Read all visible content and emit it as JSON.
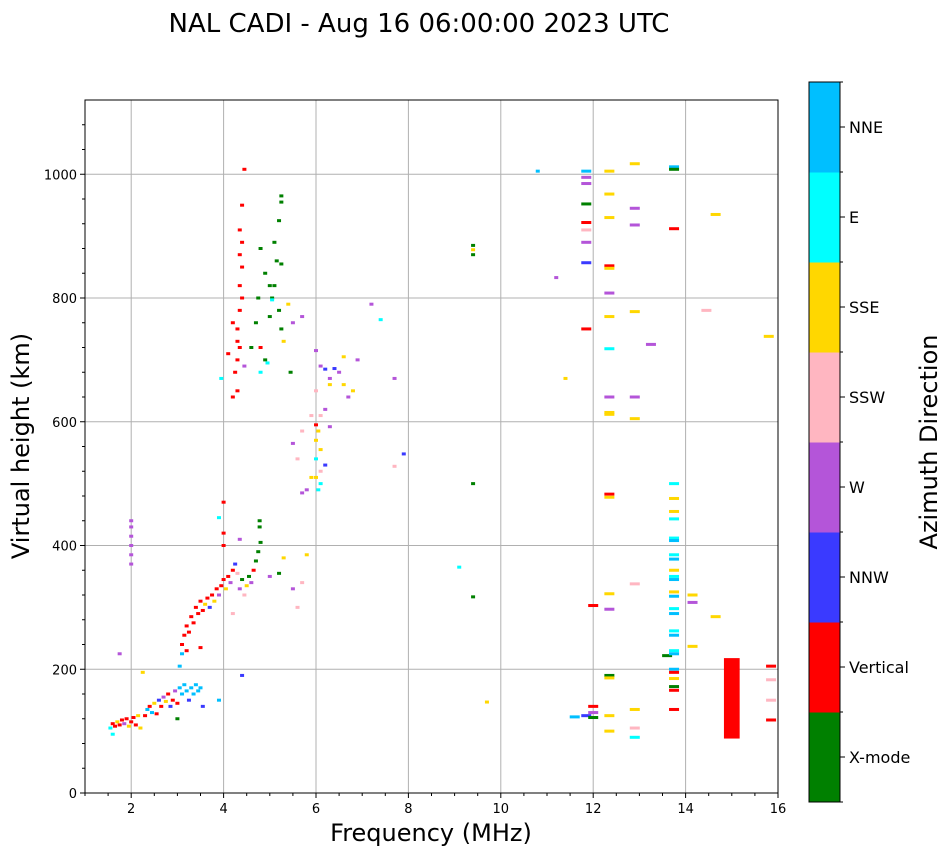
{
  "chart_data": {
    "type": "scatter",
    "title": "NAL CADI - Aug 16 06:00:00 2023 UTC",
    "xlabel": "Frequency (MHz)",
    "ylabel": "Virtual height (km)",
    "xlim": [
      1,
      16
    ],
    "ylim": [
      0,
      1120
    ],
    "xticks": [
      2,
      4,
      6,
      8,
      10,
      12,
      14,
      16
    ],
    "yticks": [
      0,
      200,
      400,
      600,
      800,
      1000
    ],
    "grid": true,
    "colorbar": {
      "label": "Azimuth Direction",
      "categories": [
        {
          "name": "X-mode",
          "color": "#008000"
        },
        {
          "name": "Vertical",
          "color": "#ff0000"
        },
        {
          "name": "NNW",
          "color": "#3a3aff"
        },
        {
          "name": "W",
          "color": "#b455d9"
        },
        {
          "name": "SSW",
          "color": "#ffb6c1"
        },
        {
          "name": "SSE",
          "color": "#ffd700"
        },
        {
          "name": "E",
          "color": "#00ffff"
        },
        {
          "name": "NNE",
          "color": "#00bfff"
        }
      ]
    },
    "points": [
      [
        1.55,
        105,
        "E"
      ],
      [
        1.6,
        112,
        "Vertical"
      ],
      [
        1.65,
        108,
        "Vertical"
      ],
      [
        1.7,
        115,
        "SSE"
      ],
      [
        1.75,
        110,
        "Vertical"
      ],
      [
        1.8,
        118,
        "Vertical"
      ],
      [
        1.85,
        112,
        "W"
      ],
      [
        1.9,
        120,
        "Vertical"
      ],
      [
        1.95,
        108,
        "SSE"
      ],
      [
        2.0,
        115,
        "Vertical"
      ],
      [
        2.05,
        122,
        "Vertical"
      ],
      [
        2.1,
        110,
        "Vertical"
      ],
      [
        2.15,
        125,
        "SSE"
      ],
      [
        2.2,
        105,
        "SSE"
      ],
      [
        1.6,
        95,
        "E"
      ],
      [
        1.75,
        225,
        "W"
      ],
      [
        2.25,
        195,
        "SSE"
      ],
      [
        2.0,
        370,
        "W"
      ],
      [
        2.0,
        385,
        "W"
      ],
      [
        2.0,
        400,
        "W"
      ],
      [
        2.0,
        415,
        "W"
      ],
      [
        2.0,
        430,
        "W"
      ],
      [
        2.0,
        440,
        "W"
      ],
      [
        2.3,
        125,
        "Vertical"
      ],
      [
        2.35,
        135,
        "NNE"
      ],
      [
        2.4,
        140,
        "Vertical"
      ],
      [
        2.45,
        130,
        "NNE"
      ],
      [
        2.5,
        145,
        "SSE"
      ],
      [
        2.55,
        128,
        "Vertical"
      ],
      [
        2.6,
        150,
        "NNW"
      ],
      [
        2.65,
        140,
        "Vertical"
      ],
      [
        2.7,
        155,
        "W"
      ],
      [
        2.75,
        148,
        "SSE"
      ],
      [
        2.8,
        160,
        "Vertical"
      ],
      [
        2.85,
        140,
        "NNW"
      ],
      [
        2.9,
        150,
        "Vertical"
      ],
      [
        2.95,
        165,
        "W"
      ],
      [
        3.0,
        145,
        "Vertical"
      ],
      [
        3.05,
        170,
        "NNE"
      ],
      [
        3.1,
        160,
        "NNE"
      ],
      [
        3.15,
        175,
        "NNE"
      ],
      [
        3.2,
        165,
        "NNE"
      ],
      [
        3.25,
        150,
        "NNW"
      ],
      [
        3.3,
        170,
        "NNE"
      ],
      [
        3.35,
        160,
        "NNE"
      ],
      [
        3.4,
        175,
        "NNE"
      ],
      [
        3.45,
        165,
        "NNE"
      ],
      [
        3.5,
        170,
        "NNE"
      ],
      [
        3.55,
        140,
        "NNW"
      ],
      [
        3.0,
        120,
        "X-mode"
      ],
      [
        3.05,
        205,
        "NNE"
      ],
      [
        3.1,
        225,
        "NNE"
      ],
      [
        3.9,
        150,
        "NNE"
      ],
      [
        3.1,
        240,
        "Vertical"
      ],
      [
        3.15,
        255,
        "Vertical"
      ],
      [
        3.2,
        270,
        "Vertical"
      ],
      [
        3.25,
        260,
        "Vertical"
      ],
      [
        3.3,
        285,
        "Vertical"
      ],
      [
        3.35,
        275,
        "Vertical"
      ],
      [
        3.4,
        300,
        "Vertical"
      ],
      [
        3.45,
        290,
        "Vertical"
      ],
      [
        3.5,
        310,
        "Vertical"
      ],
      [
        3.55,
        295,
        "Vertical"
      ],
      [
        3.6,
        305,
        "SSE"
      ],
      [
        3.65,
        315,
        "Vertical"
      ],
      [
        3.7,
        300,
        "NNW"
      ],
      [
        3.75,
        320,
        "Vertical"
      ],
      [
        3.8,
        310,
        "SSE"
      ],
      [
        3.85,
        330,
        "Vertical"
      ],
      [
        3.9,
        320,
        "W"
      ],
      [
        3.95,
        335,
        "Vertical"
      ],
      [
        4.0,
        345,
        "Vertical"
      ],
      [
        4.05,
        330,
        "SSE"
      ],
      [
        4.1,
        350,
        "Vertical"
      ],
      [
        4.15,
        340,
        "W"
      ],
      [
        4.2,
        360,
        "Vertical"
      ],
      [
        4.25,
        370,
        "NNW"
      ],
      [
        4.3,
        355,
        "SSW"
      ],
      [
        4.35,
        330,
        "W"
      ],
      [
        4.4,
        345,
        "X-mode"
      ],
      [
        4.45,
        320,
        "SSW"
      ],
      [
        4.5,
        335,
        "SSE"
      ],
      [
        4.55,
        350,
        "X-mode"
      ],
      [
        4.6,
        340,
        "W"
      ],
      [
        4.65,
        360,
        "Vertical"
      ],
      [
        4.7,
        375,
        "X-mode"
      ],
      [
        4.75,
        390,
        "X-mode"
      ],
      [
        4.8,
        405,
        "X-mode"
      ],
      [
        4.78,
        430,
        "X-mode"
      ],
      [
        4.78,
        440,
        "X-mode"
      ],
      [
        3.2,
        230,
        "Vertical"
      ],
      [
        3.5,
        235,
        "Vertical"
      ],
      [
        4.0,
        400,
        "Vertical"
      ],
      [
        4.0,
        420,
        "Vertical"
      ],
      [
        3.9,
        445,
        "E"
      ],
      [
        4.0,
        470,
        "Vertical"
      ],
      [
        4.2,
        290,
        "SSW"
      ],
      [
        4.35,
        410,
        "W"
      ],
      [
        4.4,
        190,
        "NNW"
      ],
      [
        5.0,
        350,
        "W"
      ],
      [
        5.2,
        355,
        "X-mode"
      ],
      [
        5.3,
        380,
        "SSE"
      ],
      [
        5.5,
        330,
        "W"
      ],
      [
        5.6,
        300,
        "SSW"
      ],
      [
        5.7,
        340,
        "SSW"
      ],
      [
        5.8,
        385,
        "SSE"
      ],
      [
        4.3,
        650,
        "Vertical"
      ],
      [
        4.25,
        680,
        "Vertical"
      ],
      [
        4.3,
        700,
        "Vertical"
      ],
      [
        4.35,
        720,
        "Vertical"
      ],
      [
        4.3,
        750,
        "Vertical"
      ],
      [
        4.35,
        780,
        "Vertical"
      ],
      [
        4.4,
        800,
        "Vertical"
      ],
      [
        4.35,
        820,
        "Vertical"
      ],
      [
        4.4,
        850,
        "Vertical"
      ],
      [
        4.35,
        870,
        "Vertical"
      ],
      [
        4.4,
        890,
        "Vertical"
      ],
      [
        4.35,
        910,
        "Vertical"
      ],
      [
        4.4,
        950,
        "Vertical"
      ],
      [
        4.45,
        1008,
        "Vertical"
      ],
      [
        4.2,
        640,
        "Vertical"
      ],
      [
        4.1,
        710,
        "Vertical"
      ],
      [
        4.2,
        760,
        "Vertical"
      ],
      [
        4.3,
        730,
        "Vertical"
      ],
      [
        4.45,
        690,
        "W"
      ],
      [
        3.95,
        670,
        "E"
      ],
      [
        4.6,
        720,
        "X-mode"
      ],
      [
        4.7,
        760,
        "X-mode"
      ],
      [
        4.75,
        800,
        "X-mode"
      ],
      [
        4.8,
        880,
        "X-mode"
      ],
      [
        4.9,
        840,
        "X-mode"
      ],
      [
        5.0,
        820,
        "X-mode"
      ],
      [
        5.05,
        800,
        "X-mode"
      ],
      [
        5.1,
        890,
        "X-mode"
      ],
      [
        5.15,
        860,
        "X-mode"
      ],
      [
        5.2,
        780,
        "X-mode"
      ],
      [
        5.25,
        750,
        "X-mode"
      ],
      [
        5.0,
        770,
        "X-mode"
      ],
      [
        5.1,
        820,
        "X-mode"
      ],
      [
        4.9,
        700,
        "X-mode"
      ],
      [
        5.25,
        855,
        "X-mode"
      ],
      [
        5.25,
        965,
        "X-mode"
      ],
      [
        5.25,
        955,
        "X-mode"
      ],
      [
        5.2,
        925,
        "X-mode"
      ],
      [
        5.4,
        790,
        "SSE"
      ],
      [
        5.3,
        730,
        "SSE"
      ],
      [
        5.45,
        680,
        "X-mode"
      ],
      [
        5.5,
        760,
        "W"
      ],
      [
        5.7,
        770,
        "W"
      ],
      [
        4.8,
        680,
        "E"
      ],
      [
        4.95,
        695,
        "E"
      ],
      [
        5.05,
        797,
        "E"
      ],
      [
        4.8,
        720,
        "Vertical"
      ],
      [
        6.0,
        715,
        "W"
      ],
      [
        6.1,
        690,
        "W"
      ],
      [
        6.2,
        685,
        "NNW"
      ],
      [
        6.3,
        670,
        "W"
      ],
      [
        6.4,
        686,
        "NNW"
      ],
      [
        6.5,
        680,
        "W"
      ],
      [
        6.6,
        660,
        "SSE"
      ],
      [
        6.7,
        640,
        "W"
      ],
      [
        6.8,
        650,
        "SSE"
      ],
      [
        6.9,
        700,
        "W"
      ],
      [
        6.6,
        705,
        "SSE"
      ],
      [
        6.0,
        650,
        "SSW"
      ],
      [
        6.1,
        610,
        "SSW"
      ],
      [
        6.2,
        620,
        "W"
      ],
      [
        6.3,
        592,
        "W"
      ],
      [
        6.0,
        595,
        "Vertical"
      ],
      [
        6.05,
        585,
        "SSE"
      ],
      [
        6.0,
        570,
        "SSE"
      ],
      [
        6.1,
        555,
        "SSE"
      ],
      [
        6.0,
        540,
        "E"
      ],
      [
        6.1,
        520,
        "SSW"
      ],
      [
        6.2,
        530,
        "NNW"
      ],
      [
        6.0,
        510,
        "SSE"
      ],
      [
        6.1,
        500,
        "E"
      ],
      [
        6.05,
        490,
        "E"
      ],
      [
        5.9,
        510,
        "SSE"
      ],
      [
        5.8,
        490,
        "W"
      ],
      [
        5.7,
        485,
        "W"
      ],
      [
        5.6,
        540,
        "SSW"
      ],
      [
        5.5,
        565,
        "W"
      ],
      [
        5.7,
        585,
        "SSW"
      ],
      [
        5.9,
        610,
        "SSW"
      ],
      [
        6.3,
        660,
        "SSE"
      ],
      [
        7.2,
        790,
        "W"
      ],
      [
        7.4,
        765,
        "E"
      ],
      [
        7.7,
        670,
        "W"
      ],
      [
        7.9,
        548,
        "NNW"
      ],
      [
        7.7,
        528,
        "SSW"
      ],
      [
        9.4,
        885,
        "X-mode"
      ],
      [
        9.4,
        878,
        "SSE"
      ],
      [
        9.4,
        870,
        "X-mode"
      ],
      [
        9.4,
        500,
        "X-mode"
      ],
      [
        9.4,
        317,
        "X-mode"
      ],
      [
        9.1,
        365,
        "E"
      ],
      [
        9.7,
        147,
        "SSE"
      ],
      [
        10.8,
        1005,
        "NNE"
      ],
      [
        11.2,
        833,
        "W"
      ],
      [
        11.4,
        670,
        "SSE"
      ],
      [
        11.6,
        123,
        "NNE"
      ],
      [
        11.85,
        1005,
        "NNE"
      ],
      [
        11.85,
        995,
        "W"
      ],
      [
        11.85,
        985,
        "W"
      ],
      [
        11.85,
        952,
        "X-mode"
      ],
      [
        11.85,
        922,
        "Vertical"
      ],
      [
        11.85,
        910,
        "SSW"
      ],
      [
        11.85,
        890,
        "W"
      ],
      [
        11.85,
        857,
        "NNW"
      ],
      [
        11.85,
        750,
        "Vertical"
      ],
      [
        11.85,
        125,
        "NNW"
      ],
      [
        12.0,
        140,
        "Vertical"
      ],
      [
        12.0,
        130,
        "W"
      ],
      [
        12.0,
        122,
        "X-mode"
      ],
      [
        12.0,
        303,
        "Vertical"
      ],
      [
        12.35,
        1005,
        "SSE"
      ],
      [
        12.35,
        968,
        "SSE"
      ],
      [
        12.35,
        930,
        "SSE"
      ],
      [
        12.35,
        852,
        "Vertical"
      ],
      [
        12.35,
        848,
        "SSE"
      ],
      [
        12.35,
        808,
        "W"
      ],
      [
        12.35,
        770,
        "SSE"
      ],
      [
        12.35,
        718,
        "E"
      ],
      [
        12.35,
        640,
        "W"
      ],
      [
        12.35,
        615,
        "SSE"
      ],
      [
        12.35,
        612,
        "SSE"
      ],
      [
        12.35,
        483,
        "Vertical"
      ],
      [
        12.35,
        478,
        "SSE"
      ],
      [
        12.35,
        322,
        "SSE"
      ],
      [
        12.35,
        297,
        "W"
      ],
      [
        12.35,
        190,
        "X-mode"
      ],
      [
        12.35,
        186,
        "SSE"
      ],
      [
        12.35,
        125,
        "SSE"
      ],
      [
        12.35,
        100,
        "SSE"
      ],
      [
        12.9,
        1017,
        "SSE"
      ],
      [
        12.9,
        945,
        "W"
      ],
      [
        12.9,
        918,
        "W"
      ],
      [
        12.9,
        778,
        "SSE"
      ],
      [
        12.9,
        640,
        "W"
      ],
      [
        12.9,
        605,
        "SSE"
      ],
      [
        12.9,
        338,
        "SSW"
      ],
      [
        12.9,
        135,
        "SSE"
      ],
      [
        12.9,
        105,
        "SSW"
      ],
      [
        12.9,
        90,
        "E"
      ],
      [
        13.25,
        725,
        "W"
      ],
      [
        13.6,
        222,
        "X-mode"
      ],
      [
        13.75,
        1012,
        "NNE"
      ],
      [
        13.75,
        1008,
        "X-mode"
      ],
      [
        13.75,
        912,
        "Vertical"
      ],
      [
        13.75,
        500,
        "E"
      ],
      [
        13.75,
        476,
        "SSE"
      ],
      [
        13.75,
        455,
        "SSE"
      ],
      [
        13.75,
        443,
        "E"
      ],
      [
        13.75,
        412,
        "E"
      ],
      [
        13.75,
        408,
        "NNE"
      ],
      [
        13.75,
        385,
        "E"
      ],
      [
        13.75,
        378,
        "NNE"
      ],
      [
        13.75,
        360,
        "SSE"
      ],
      [
        13.75,
        350,
        "E"
      ],
      [
        13.75,
        345,
        "NNE"
      ],
      [
        13.75,
        325,
        "SSE"
      ],
      [
        13.75,
        318,
        "NNE"
      ],
      [
        13.75,
        298,
        "E"
      ],
      [
        13.75,
        290,
        "NNE"
      ],
      [
        13.75,
        262,
        "E"
      ],
      [
        13.75,
        255,
        "NNE"
      ],
      [
        13.75,
        230,
        "E"
      ],
      [
        13.75,
        225,
        "NNE"
      ],
      [
        13.75,
        200,
        "NNE"
      ],
      [
        13.75,
        195,
        "Vertical"
      ],
      [
        13.75,
        185,
        "SSE"
      ],
      [
        13.75,
        172,
        "X-mode"
      ],
      [
        13.75,
        166,
        "Vertical"
      ],
      [
        13.75,
        135,
        "Vertical"
      ],
      [
        14.15,
        320,
        "SSE"
      ],
      [
        14.15,
        308,
        "W"
      ],
      [
        14.15,
        237,
        "SSE"
      ],
      [
        14.45,
        780,
        "SSW"
      ],
      [
        14.65,
        935,
        "SSE"
      ],
      [
        14.65,
        285,
        "SSE"
      ],
      [
        15.8,
        738,
        "SSE"
      ],
      [
        15.85,
        205,
        "Vertical"
      ],
      [
        15.85,
        183,
        "SSW"
      ],
      [
        15.85,
        150,
        "SSW"
      ],
      [
        15.85,
        118,
        "Vertical"
      ]
    ],
    "bars": [
      {
        "x_start": 14.83,
        "x_end": 15.17,
        "y_start": 88,
        "y_end": 218,
        "category": "Vertical"
      }
    ]
  }
}
